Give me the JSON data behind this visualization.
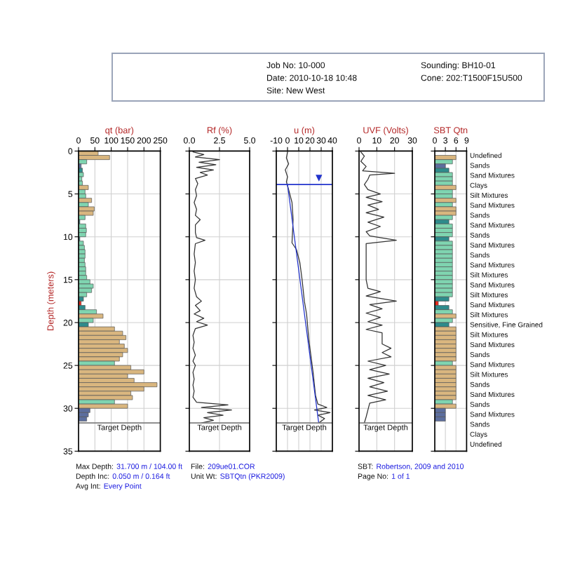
{
  "chart_data": [
    {
      "type": "other",
      "annotations": [
        "Job No: 10-000",
        "Date: 2010-10-18 10:48",
        "Site: New West",
        "Sounding: BH10-01",
        "Cone: 202:T1500F15U500"
      ]
    },
    {
      "type": "bar",
      "orientation": "horizontal",
      "title": "qt (bar)",
      "ylabel": "Depth (meters)",
      "x": [
        0.25,
        0.75,
        1.25,
        1.75,
        2.25,
        2.75,
        3.25,
        3.75,
        4.25,
        4.75,
        5.25,
        5.75,
        6.25,
        6.75,
        7.25,
        7.75,
        8.25,
        8.75,
        9.25,
        9.75,
        10.25,
        10.75,
        11.25,
        11.75,
        12.25,
        12.75,
        13.25,
        13.75,
        14.25,
        14.75,
        15.25,
        15.75,
        16.25,
        16.75,
        17.25,
        17.75,
        18.25,
        18.75,
        19.25,
        19.75,
        20.25,
        20.75,
        21.25,
        21.75,
        22.25,
        22.75,
        23.25,
        23.75,
        24.25,
        24.75,
        25.25,
        25.75,
        26.25,
        26.75,
        27.25,
        27.75,
        28.25,
        28.75,
        29.25,
        29.75,
        30.25,
        30.75,
        31.25
      ],
      "values": [
        60,
        95,
        25,
        8,
        12,
        15,
        10,
        12,
        30,
        20,
        22,
        40,
        30,
        48,
        45,
        20,
        4,
        22,
        24,
        22,
        4,
        15,
        18,
        20,
        20,
        18,
        20,
        22,
        22,
        25,
        35,
        45,
        40,
        25,
        15,
        8,
        20,
        55,
        75,
        45,
        30,
        110,
        135,
        145,
        125,
        140,
        150,
        135,
        125,
        110,
        160,
        200,
        150,
        170,
        240,
        200,
        160,
        165,
        110,
        150,
        35,
        30,
        25
      ],
      "colors": [
        "#d9b67f",
        "#d9b67f",
        "#7fd4b0",
        "#5c6e9e",
        "#2e8b8b",
        "#7fd4b0",
        "#7fd4b0",
        "#7fd4b0",
        "#d9b67f",
        "#7fd4b0",
        "#7fd4b0",
        "#d9b67f",
        "#7fd4b0",
        "#d9b67f",
        "#d9b67f",
        "#7fd4b0",
        "#2e8b8b",
        "#7fd4b0",
        "#7fd4b0",
        "#7fd4b0",
        "#2e8b8b",
        "#7fd4b0",
        "#7fd4b0",
        "#7fd4b0",
        "#7fd4b0",
        "#7fd4b0",
        "#7fd4b0",
        "#7fd4b0",
        "#7fd4b0",
        "#7fd4b0",
        "#7fd4b0",
        "#7fd4b0",
        "#7fd4b0",
        "#7fd4b0",
        "#2e8b8b",
        "#e8291c",
        "#2e8b8b",
        "#7fd4b0",
        "#d9b67f",
        "#7fd4b0",
        "#2e8b8b",
        "#d9b67f",
        "#d9b67f",
        "#d9b67f",
        "#d9b67f",
        "#d9b67f",
        "#d9b67f",
        "#d9b67f",
        "#d9b67f",
        "#7fd4b0",
        "#d9b67f",
        "#d9b67f",
        "#d9b67f",
        "#d9b67f",
        "#d9b67f",
        "#d9b67f",
        "#d9b67f",
        "#d9b67f",
        "#7fd4b0",
        "#d9b67f",
        "#5c6e9e",
        "#5c6e9e",
        "#5c6e9e"
      ],
      "xlim": [
        0,
        250
      ],
      "xticks": [
        0,
        50,
        100,
        150,
        200,
        250
      ],
      "ylim": [
        35,
        0
      ],
      "yticks": [
        0,
        5,
        10,
        15,
        20,
        25,
        30,
        35
      ],
      "grid": true,
      "ref_lines": [
        {
          "axis": "y",
          "value": 31.7,
          "label": "Target Depth",
          "color": "#808080"
        }
      ]
    },
    {
      "type": "line",
      "title": "Rf (%)",
      "x": [
        0.3,
        1.2,
        0.5,
        2.5,
        0.8,
        2.2,
        0.6,
        2.0,
        0.9,
        1.5,
        0.5,
        0.7,
        0.5,
        0.6,
        0.4,
        0.6,
        0.5,
        0.9,
        0.5,
        0.5,
        0.6,
        1.3,
        0.5,
        0.4,
        0.5,
        0.4,
        0.5,
        0.4,
        0.6,
        1.0,
        0.5,
        0.9,
        0.4,
        1.2,
        0.6,
        1.5,
        0.5,
        0.3,
        0.4,
        0.3,
        0.5,
        0.3,
        0.5,
        0.3,
        0.4,
        0.3,
        0.4,
        0.3,
        0.6,
        3.2,
        1.0,
        3.5,
        1.5,
        2.8,
        1.2,
        2.0,
        1.0
      ],
      "values": [
        0.1,
        0.4,
        0.7,
        1.0,
        1.3,
        1.6,
        1.9,
        2.2,
        2.5,
        2.8,
        3.2,
        3.8,
        4.5,
        5.2,
        6.0,
        6.8,
        7.5,
        8.0,
        8.6,
        9.5,
        10.1,
        10.4,
        10.8,
        12.0,
        13.0,
        14.0,
        15.0,
        16.0,
        17.0,
        17.5,
        18.0,
        18.6,
        19.0,
        19.5,
        19.9,
        20.3,
        20.7,
        21.5,
        22.3,
        23.0,
        23.8,
        24.5,
        25.0,
        25.8,
        26.6,
        27.3,
        28.0,
        28.7,
        29.3,
        29.6,
        29.9,
        30.2,
        30.5,
        30.8,
        31.1,
        31.4,
        31.7
      ],
      "color": "#333333",
      "xlim": [
        0,
        5
      ],
      "xticks": [
        {
          "value": 0,
          "label": "0.0"
        },
        2.5,
        {
          "value": 5,
          "label": "5.0"
        }
      ],
      "ylim": [
        35,
        0
      ],
      "yticks": [
        0,
        5,
        10,
        15,
        20,
        25,
        30,
        35
      ],
      "tick_labels": "x",
      "grid": true,
      "ref_lines": [
        {
          "axis": "y",
          "value": 31.7,
          "label": "Target Depth",
          "color": "#808080"
        }
      ]
    },
    {
      "type": "line",
      "title": "u (m)",
      "series": [
        {
          "x": [
            0,
            -1,
            1,
            -2,
            0,
            -1,
            1,
            4,
            5,
            4,
            8,
            11,
            13,
            15,
            17,
            18,
            19,
            21,
            23,
            24,
            25,
            27,
            35,
            24,
            38,
            27,
            33,
            28
          ],
          "values": [
            0.1,
            0.8,
            1.5,
            2.2,
            3.0,
            3.6,
            4.5,
            6.0,
            8.0,
            10.7,
            11.5,
            13.0,
            15.0,
            17.5,
            19.0,
            20.5,
            22.0,
            24.0,
            26.0,
            27.3,
            28.5,
            29.5,
            29.9,
            30.2,
            30.5,
            30.8,
            31.2,
            31.7
          ],
          "color": "#333333"
        },
        {
          "x": [
            0,
            27.8
          ],
          "values": [
            3.9,
            31.7
          ],
          "color": "#2233cc"
        }
      ],
      "xlim": [
        -10,
        40
      ],
      "xticks": [
        -10,
        0,
        10,
        20,
        30,
        40
      ],
      "ylim": [
        35,
        0
      ],
      "yticks": [
        0,
        5,
        10,
        15,
        20,
        25,
        30,
        35
      ],
      "tick_labels": "x",
      "grid": true,
      "ref_lines": [
        {
          "axis": "y",
          "value": 3.9,
          "color": "#2233cc"
        },
        {
          "axis": "y",
          "value": 31.7,
          "label": "Target Depth",
          "color": "#808080"
        }
      ],
      "annotations": [
        {
          "text": "▼",
          "x": 28,
          "y": 3.9
        }
      ]
    },
    {
      "type": "line",
      "title": "UVF (Volts)",
      "x": [
        1,
        3,
        1,
        4,
        2,
        20,
        6,
        5,
        3,
        5,
        12,
        4,
        13,
        5,
        11,
        4,
        14,
        5,
        12,
        4,
        6,
        21,
        4,
        4,
        4,
        4,
        5,
        12,
        4,
        21,
        6,
        13,
        4,
        12,
        5,
        13,
        4,
        13,
        13,
        18,
        13,
        18,
        5,
        15,
        6,
        17,
        5,
        14,
        6,
        16,
        5,
        15,
        6,
        5,
        4,
        3
      ],
      "values": [
        0.1,
        0.6,
        1.2,
        1.8,
        2.3,
        2.6,
        2.8,
        3.3,
        3.9,
        4.5,
        5.0,
        5.4,
        5.9,
        6.3,
        6.8,
        7.2,
        7.7,
        8.3,
        8.8,
        9.4,
        9.9,
        10.4,
        10.8,
        12.0,
        13.5,
        15.0,
        16.0,
        16.4,
        16.9,
        17.5,
        17.9,
        18.4,
        18.9,
        19.4,
        19.9,
        20.3,
        20.8,
        21.2,
        22.5,
        23.0,
        23.5,
        24.0,
        24.5,
        25.0,
        25.5,
        26.0,
        26.5,
        27.0,
        27.5,
        28.0,
        28.5,
        29.0,
        29.4,
        30.2,
        31.0,
        31.7
      ],
      "color": "#333333",
      "xlim": [
        0,
        30
      ],
      "xticks": [
        0,
        10,
        20,
        30
      ],
      "ylim": [
        35,
        0
      ],
      "yticks": [
        0,
        5,
        10,
        15,
        20,
        25,
        30,
        35
      ],
      "tick_labels": "x",
      "grid": true,
      "ref_lines": [
        {
          "axis": "y",
          "value": 31.7,
          "label": "Target Depth",
          "color": "#808080"
        }
      ]
    },
    {
      "type": "bar",
      "orientation": "horizontal",
      "title": "SBT Qtn",
      "x": [
        0.75,
        1.25,
        1.75,
        2.25,
        2.75,
        3.25,
        3.75,
        4.25,
        4.75,
        5.25,
        5.75,
        6.25,
        6.75,
        7.25,
        7.75,
        8.25,
        8.75,
        9.25,
        9.75,
        10.25,
        10.75,
        11.25,
        11.75,
        12.25,
        12.75,
        13.25,
        13.75,
        14.25,
        14.75,
        15.25,
        15.75,
        16.25,
        16.75,
        17.25,
        17.75,
        18.25,
        18.75,
        19.25,
        19.75,
        20.25,
        20.75,
        21.25,
        21.75,
        22.25,
        22.75,
        23.25,
        23.75,
        24.25,
        24.75,
        25.25,
        25.75,
        26.25,
        26.75,
        27.25,
        27.75,
        28.25,
        28.75,
        29.25,
        29.75,
        30.25,
        30.75,
        31.25
      ],
      "values": [
        6,
        5,
        3,
        4,
        5,
        5,
        5,
        6,
        5,
        5,
        6,
        5,
        6,
        6,
        5,
        4,
        5,
        5,
        5,
        4,
        5,
        5,
        5,
        5,
        5,
        5,
        5,
        5,
        5,
        5,
        5,
        5,
        5,
        4,
        1,
        4,
        5,
        6,
        5,
        4,
        6,
        6,
        6,
        6,
        6,
        6,
        6,
        6,
        5,
        6,
        6,
        6,
        6,
        6,
        6,
        6,
        6,
        5,
        6,
        3,
        3,
        3
      ],
      "colors": [
        "#d9b67f",
        "#7fd4b0",
        "#5c6e9e",
        "#2e8b8b",
        "#7fd4b0",
        "#7fd4b0",
        "#7fd4b0",
        "#d9b67f",
        "#7fd4b0",
        "#7fd4b0",
        "#d9b67f",
        "#7fd4b0",
        "#d9b67f",
        "#d9b67f",
        "#7fd4b0",
        "#2e8b8b",
        "#7fd4b0",
        "#7fd4b0",
        "#7fd4b0",
        "#2e8b8b",
        "#7fd4b0",
        "#7fd4b0",
        "#7fd4b0",
        "#7fd4b0",
        "#7fd4b0",
        "#7fd4b0",
        "#7fd4b0",
        "#7fd4b0",
        "#7fd4b0",
        "#7fd4b0",
        "#7fd4b0",
        "#7fd4b0",
        "#7fd4b0",
        "#2e8b8b",
        "#e8291c",
        "#2e8b8b",
        "#7fd4b0",
        "#d9b67f",
        "#7fd4b0",
        "#2e8b8b",
        "#d9b67f",
        "#d9b67f",
        "#d9b67f",
        "#d9b67f",
        "#d9b67f",
        "#d9b67f",
        "#d9b67f",
        "#d9b67f",
        "#7fd4b0",
        "#d9b67f",
        "#d9b67f",
        "#d9b67f",
        "#d9b67f",
        "#d9b67f",
        "#d9b67f",
        "#d9b67f",
        "#d9b67f",
        "#7fd4b0",
        "#d9b67f",
        "#5c6e9e",
        "#5c6e9e",
        "#5c6e9e"
      ],
      "xlim": [
        0,
        9
      ],
      "xticks": [
        0,
        3,
        6,
        9
      ],
      "ylim": [
        35,
        0
      ],
      "yticks": [
        0,
        5,
        10,
        15,
        20,
        25,
        30,
        35
      ],
      "tick_labels": "x",
      "grid": true,
      "annotations": [
        "Undefined",
        "Sands",
        "Sand Mixtures",
        "Clays",
        "Silt Mixtures",
        "Sand Mixtures",
        "Sands",
        "Sand Mixtures",
        "Sands",
        "Sand Mixtures",
        "Sands",
        "Sand Mixtures",
        "Silt Mixtures",
        "Sand Mixtures",
        "Silt Mixtures",
        "Sand Mixtures",
        "Silt Mixtures",
        "Sensitive, Fine Grained",
        "Silt Mixtures",
        "Sand Mixtures",
        "Sands",
        "Sand Mixtures",
        "Silt Mixtures",
        "Sands",
        "Sand Mixtures",
        "Sands",
        "Sand Mixtures",
        "Sands",
        "Clays",
        "Undefined"
      ]
    },
    {
      "type": "other",
      "annotations": [
        "Max Depth:",
        "31.700 m / 104.00 ft",
        "Depth Inc:",
        "0.050 m / 0.164 ft",
        "Avg Int:",
        "Every Point",
        "File:",
        "209ue01.COR",
        "Unit Wt:",
        "SBTQtn (PKR2009)",
        "SBT:",
        "Robertson, 2009 and 2010",
        "Page No:",
        "1 of 1"
      ]
    }
  ]
}
